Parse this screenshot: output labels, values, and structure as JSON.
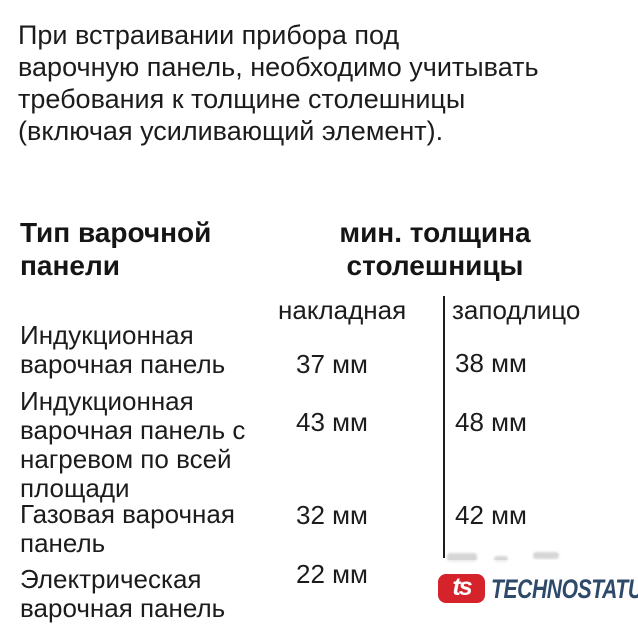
{
  "intro": {
    "lines": [
      "При встраивании прибора под",
      "варочную панель, необходимо учитывать",
      "требования к толщине столешницы",
      "(включая усиливающий элемент)."
    ]
  },
  "table": {
    "col1_header_lines": [
      "Тип варочной",
      "панели"
    ],
    "col2_header_lines": [
      "мин. толщина",
      "столешницы"
    ],
    "subheaders": {
      "overlay": "накладная",
      "flush": "заподлицо"
    },
    "rows": [
      {
        "label_lines": [
          "Индукционная",
          "варочная панель"
        ],
        "overlay": "37 мм",
        "flush": "38 мм"
      },
      {
        "label_lines": [
          "Индукционная",
          "варочная панель с",
          "нагревом по всей",
          "площади"
        ],
        "overlay": "43 мм",
        "flush": "48 мм"
      },
      {
        "label_lines": [
          "Газовая варочная",
          "панель"
        ],
        "overlay": "32 мм",
        "flush": "42 мм"
      },
      {
        "label_lines": [
          "Электрическая",
          "варочная панель"
        ],
        "overlay": "22 мм",
        "flush": "",
        "flush_obscured_by_watermark": true
      }
    ]
  },
  "watermark": {
    "monogram": "ts",
    "brand": "TECHNOSTATUS",
    "logo_color": "#d5232b",
    "brand_color": "#2e4a6b"
  },
  "colors": {
    "text": "#1c1c1c",
    "background": "#ffffff"
  }
}
